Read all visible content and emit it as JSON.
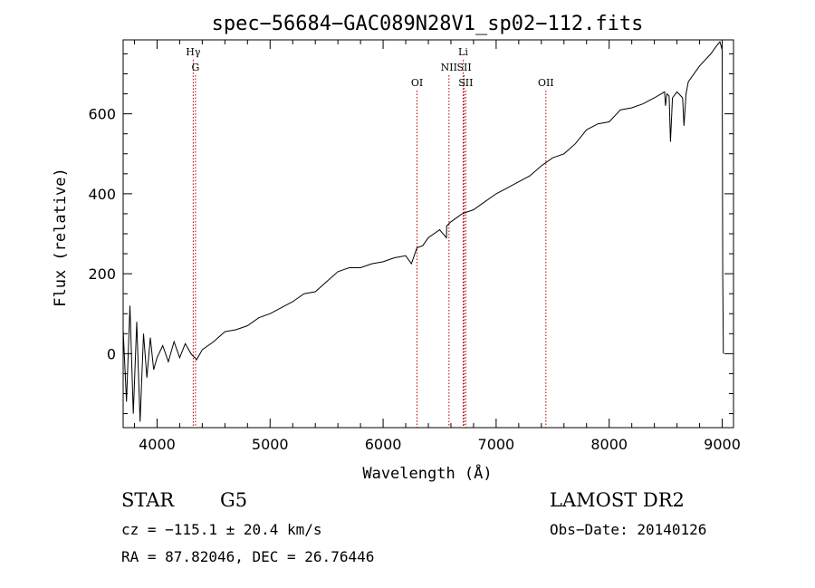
{
  "chart_data": {
    "type": "line",
    "title": "spec−56684−GAC089N28V1_sp02−112.fits",
    "xlabel": "Wavelength (Å)",
    "ylabel": "Flux (relative)",
    "xlim": [
      3700,
      9100
    ],
    "ylim": [
      -185,
      785
    ],
    "xticks": [
      4000,
      5000,
      6000,
      7000,
      8000,
      9000
    ],
    "xtick_labels": [
      "4000",
      "5000",
      "6000",
      "7000",
      "8000",
      "9000"
    ],
    "yticks": [
      0,
      200,
      400,
      600
    ],
    "ytick_labels": [
      "0",
      "200",
      "400",
      "600"
    ],
    "grid": false,
    "line_color": "#000000",
    "marker_color": "#b00000",
    "spectrum": {
      "x": [
        3700,
        3730,
        3760,
        3790,
        3820,
        3850,
        3880,
        3910,
        3940,
        3970,
        4000,
        4050,
        4100,
        4150,
        4200,
        4250,
        4300,
        4350,
        4400,
        4500,
        4600,
        4700,
        4800,
        4900,
        5000,
        5100,
        5200,
        5300,
        5400,
        5500,
        5600,
        5700,
        5800,
        5900,
        6000,
        6100,
        6200,
        6250,
        6300,
        6350,
        6400,
        6500,
        6560,
        6563,
        6600,
        6700,
        6800,
        6900,
        7000,
        7100,
        7200,
        7300,
        7400,
        7500,
        7600,
        7700,
        7800,
        7900,
        8000,
        8100,
        8200,
        8300,
        8400,
        8490,
        8498,
        8510,
        8530,
        8542,
        8560,
        8600,
        8650,
        8662,
        8680,
        8700,
        8800,
        8900,
        8950,
        8980,
        9000,
        9005,
        9010
      ],
      "y": [
        60,
        -120,
        120,
        -150,
        80,
        -170,
        50,
        -60,
        40,
        -40,
        -10,
        20,
        -20,
        30,
        -10,
        25,
        0,
        -15,
        10,
        30,
        55,
        60,
        70,
        90,
        100,
        115,
        130,
        150,
        155,
        180,
        205,
        215,
        215,
        225,
        230,
        240,
        245,
        225,
        265,
        270,
        290,
        310,
        290,
        320,
        330,
        350,
        360,
        380,
        400,
        415,
        430,
        445,
        470,
        490,
        500,
        525,
        560,
        575,
        580,
        610,
        615,
        625,
        640,
        655,
        620,
        650,
        645,
        530,
        640,
        655,
        640,
        570,
        650,
        680,
        720,
        750,
        770,
        780,
        760,
        200,
        0
      ]
    },
    "lines": [
      {
        "label": "Hγ",
        "x": 4320,
        "row": 1
      },
      {
        "label": "G",
        "x": 4340,
        "row": 2
      },
      {
        "label": "OI",
        "x": 6300,
        "row": 3
      },
      {
        "label": "NII",
        "x": 6583,
        "row": 2
      },
      {
        "label": "Li",
        "x": 6708,
        "row": 1
      },
      {
        "label": "SII",
        "x": 6717,
        "row": 2
      },
      {
        "label": "SII",
        "x": 6731,
        "row": 3
      },
      {
        "label": "OII",
        "x": 7440,
        "row": 3
      }
    ]
  },
  "footer": {
    "class_label": "STAR",
    "subclass": "G5",
    "survey": "LAMOST DR2",
    "cz": "cz = −115.1 ± 20.4 km/s",
    "obs_date": "Obs−Date: 20140126",
    "coords": "RA =  87.82046, DEC =  26.76446"
  }
}
